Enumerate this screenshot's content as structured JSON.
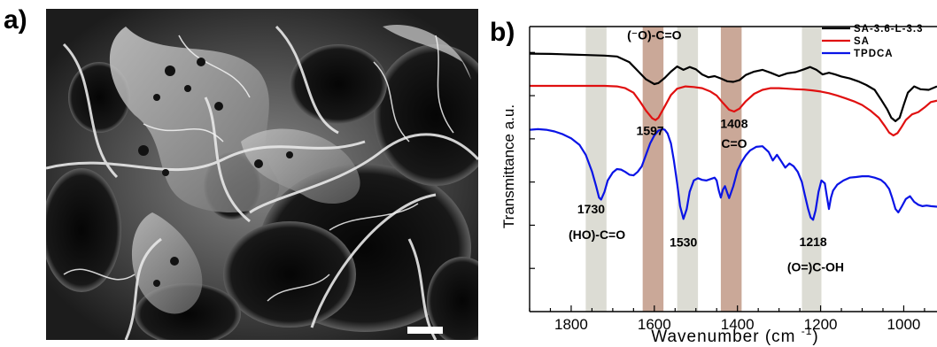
{
  "panel_a": {
    "label": "a)"
  },
  "panel_b": {
    "label": "b)"
  },
  "colors": {
    "gray_band": "#dcdcd4",
    "brown_band": "#caa898",
    "sem_background": "#262626",
    "sem_fiber": "#d8d8d8"
  },
  "chart_data": {
    "type": "line",
    "title": "",
    "xlabel": "Wavenumber (cm⁻¹)",
    "xlabel_main": "Wavenumber (cm",
    "xlabel_sup": "-1",
    "xlabel_close": ")",
    "ylabel": "Transmittance a.u.",
    "xlim": [
      1900,
      920
    ],
    "x_reversed": true,
    "ylim": [
      0,
      1
    ],
    "x_ticks": [
      1800,
      1600,
      1400,
      1200,
      1000
    ],
    "x_tick_labels": [
      "1800",
      "1600",
      "1400",
      "1200",
      "1000"
    ],
    "y_tick_labels_shown": false,
    "grid": false,
    "legend_position": "top-right",
    "bands": [
      {
        "from": 1765,
        "to": 1715,
        "color": "gray"
      },
      {
        "from": 1628,
        "to": 1578,
        "color": "brown"
      },
      {
        "from": 1545,
        "to": 1495,
        "color": "gray"
      },
      {
        "from": 1440,
        "to": 1390,
        "color": "brown"
      },
      {
        "from": 1245,
        "to": 1198,
        "color": "gray"
      }
    ],
    "series": [
      {
        "name": "SA-3.6-L-3.3",
        "color": "#000000",
        "x": [
          1900,
          1850,
          1800,
          1760,
          1720,
          1690,
          1660,
          1640,
          1620,
          1600,
          1590,
          1575,
          1560,
          1545,
          1530,
          1515,
          1500,
          1485,
          1470,
          1455,
          1440,
          1425,
          1410,
          1395,
          1380,
          1360,
          1340,
          1320,
          1300,
          1280,
          1260,
          1240,
          1225,
          1210,
          1195,
          1180,
          1165,
          1150,
          1130,
          1110,
          1090,
          1070,
          1055,
          1040,
          1030,
          1020,
          1010,
          1000,
          990,
          975,
          960,
          940,
          920
        ],
        "y": [
          0.905,
          0.904,
          0.902,
          0.9,
          0.898,
          0.895,
          0.875,
          0.845,
          0.815,
          0.798,
          0.802,
          0.82,
          0.842,
          0.86,
          0.848,
          0.858,
          0.85,
          0.832,
          0.822,
          0.826,
          0.818,
          0.808,
          0.806,
          0.812,
          0.83,
          0.842,
          0.848,
          0.838,
          0.826,
          0.836,
          0.84,
          0.85,
          0.858,
          0.848,
          0.832,
          0.838,
          0.832,
          0.825,
          0.818,
          0.808,
          0.795,
          0.778,
          0.745,
          0.71,
          0.68,
          0.668,
          0.68,
          0.725,
          0.768,
          0.79,
          0.78,
          0.778,
          0.79
        ]
      },
      {
        "name": "SA",
        "color": "#e01010",
        "x": [
          1900,
          1850,
          1800,
          1760,
          1720,
          1690,
          1670,
          1650,
          1635,
          1620,
          1605,
          1597,
          1590,
          1575,
          1560,
          1545,
          1525,
          1505,
          1485,
          1465,
          1450,
          1435,
          1420,
          1408,
          1395,
          1380,
          1360,
          1340,
          1320,
          1300,
          1280,
          1260,
          1240,
          1220,
          1200,
          1180,
          1160,
          1140,
          1120,
          1100,
          1080,
          1060,
          1045,
          1035,
          1025,
          1015,
          1005,
          995,
          980,
          965,
          950,
          935,
          920
        ],
        "y": [
          0.792,
          0.792,
          0.792,
          0.792,
          0.792,
          0.79,
          0.784,
          0.768,
          0.738,
          0.705,
          0.678,
          0.672,
          0.68,
          0.72,
          0.76,
          0.782,
          0.79,
          0.788,
          0.784,
          0.772,
          0.758,
          0.732,
          0.708,
          0.702,
          0.712,
          0.738,
          0.764,
          0.778,
          0.784,
          0.784,
          0.782,
          0.78,
          0.779,
          0.776,
          0.772,
          0.766,
          0.758,
          0.748,
          0.738,
          0.725,
          0.705,
          0.68,
          0.65,
          0.628,
          0.618,
          0.626,
          0.648,
          0.672,
          0.692,
          0.7,
          0.716,
          0.735,
          0.74
        ]
      },
      {
        "name": "TPDCA",
        "color": "#0a14e6",
        "x": [
          1900,
          1880,
          1860,
          1840,
          1820,
          1800,
          1780,
          1765,
          1750,
          1740,
          1733,
          1728,
          1720,
          1712,
          1700,
          1690,
          1680,
          1670,
          1660,
          1650,
          1640,
          1630,
          1620,
          1610,
          1600,
          1590,
          1580,
          1575,
          1568,
          1560,
          1553,
          1545,
          1538,
          1530,
          1522,
          1515,
          1505,
          1495,
          1485,
          1475,
          1465,
          1455,
          1450,
          1445,
          1440,
          1435,
          1430,
          1425,
          1420,
          1410,
          1400,
          1390,
          1380,
          1370,
          1355,
          1340,
          1325,
          1315,
          1305,
          1295,
          1285,
          1275,
          1265,
          1255,
          1245,
          1238,
          1230,
          1224,
          1218,
          1212,
          1205,
          1198,
          1190,
          1185,
          1180,
          1175,
          1170,
          1160,
          1145,
          1130,
          1115,
          1100,
          1085,
          1070,
          1055,
          1045,
          1035,
          1028,
          1020,
          1013,
          1005,
          995,
          985,
          975,
          965,
          955,
          945,
          935,
          920
        ],
        "y": [
          0.638,
          0.64,
          0.638,
          0.632,
          0.622,
          0.608,
          0.585,
          0.55,
          0.492,
          0.44,
          0.4,
          0.393,
          0.42,
          0.46,
          0.488,
          0.5,
          0.498,
          0.49,
          0.48,
          0.478,
          0.49,
          0.51,
          0.55,
          0.59,
          0.618,
          0.635,
          0.64,
          0.638,
          0.625,
          0.59,
          0.53,
          0.45,
          0.37,
          0.325,
          0.36,
          0.42,
          0.46,
          0.468,
          0.462,
          0.46,
          0.465,
          0.47,
          0.46,
          0.425,
          0.4,
          0.428,
          0.44,
          0.418,
          0.398,
          0.44,
          0.495,
          0.525,
          0.548,
          0.565,
          0.578,
          0.58,
          0.56,
          0.53,
          0.55,
          0.528,
          0.505,
          0.52,
          0.51,
          0.49,
          0.455,
          0.41,
          0.36,
          0.33,
          0.322,
          0.355,
          0.42,
          0.46,
          0.45,
          0.405,
          0.36,
          0.4,
          0.425,
          0.445,
          0.46,
          0.47,
          0.472,
          0.475,
          0.475,
          0.47,
          0.462,
          0.45,
          0.43,
          0.4,
          0.36,
          0.348,
          0.368,
          0.395,
          0.405,
          0.385,
          0.375,
          0.37,
          0.372,
          0.37,
          0.368
        ]
      }
    ],
    "annotations": [
      {
        "text": "(⁻O)-C=O",
        "x": 1600,
        "y": 0.955
      },
      {
        "text": "1597",
        "x": 1610,
        "y": 0.62
      },
      {
        "text": "1408",
        "x": 1408,
        "y": 0.645
      },
      {
        "text": "C=O",
        "x": 1408,
        "y": 0.575
      },
      {
        "text": "1730",
        "x": 1752,
        "y": 0.345
      },
      {
        "text": "(HO)-C=O",
        "x": 1738,
        "y": 0.255
      },
      {
        "text": "1530",
        "x": 1530,
        "y": 0.228
      },
      {
        "text": "1218",
        "x": 1218,
        "y": 0.23
      },
      {
        "text": "(O=)C-OH",
        "x": 1212,
        "y": 0.142
      }
    ]
  }
}
